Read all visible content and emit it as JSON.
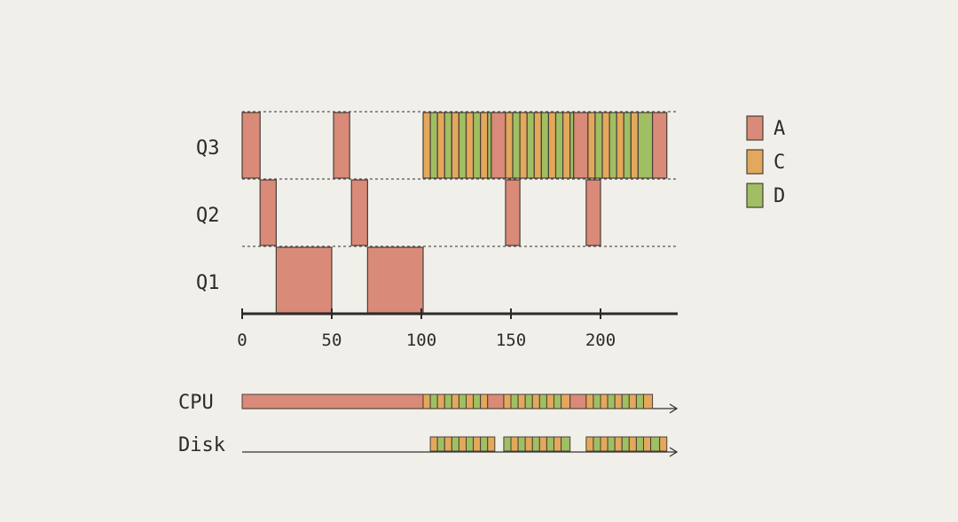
{
  "queues": {
    "labels": [
      "Q3",
      "Q2",
      "Q1"
    ],
    "slices": [
      {
        "queue": "Q3",
        "job": "A",
        "start": 0,
        "end": 10
      },
      {
        "queue": "Q2",
        "job": "A",
        "start": 10,
        "end": 19
      },
      {
        "queue": "Q1",
        "job": "A",
        "start": 19,
        "end": 50
      },
      {
        "queue": "Q3",
        "job": "A",
        "start": 51,
        "end": 60
      },
      {
        "queue": "Q2",
        "job": "A",
        "start": 61,
        "end": 70
      },
      {
        "queue": "Q1",
        "job": "A",
        "start": 70,
        "end": 101
      },
      {
        "queue": "Q3",
        "job": "C",
        "start": 101,
        "end": 105
      },
      {
        "queue": "Q3",
        "job": "D",
        "start": 105,
        "end": 109
      },
      {
        "queue": "Q3",
        "job": "C",
        "start": 109,
        "end": 113
      },
      {
        "queue": "Q3",
        "job": "D",
        "start": 113,
        "end": 117
      },
      {
        "queue": "Q3",
        "job": "C",
        "start": 117,
        "end": 121
      },
      {
        "queue": "Q3",
        "job": "D",
        "start": 121,
        "end": 125
      },
      {
        "queue": "Q3",
        "job": "C",
        "start": 125,
        "end": 129
      },
      {
        "queue": "Q3",
        "job": "D",
        "start": 129,
        "end": 133
      },
      {
        "queue": "Q3",
        "job": "C",
        "start": 133,
        "end": 137
      },
      {
        "queue": "Q3",
        "job": "D",
        "start": 137,
        "end": 139
      },
      {
        "queue": "Q3",
        "job": "A",
        "start": 139,
        "end": 147
      },
      {
        "queue": "Q2",
        "job": "A",
        "start": 147,
        "end": 155
      },
      {
        "queue": "Q3",
        "job": "C",
        "start": 147,
        "end": 151
      },
      {
        "queue": "Q3",
        "job": "D",
        "start": 151,
        "end": 155
      },
      {
        "queue": "Q3",
        "job": "C",
        "start": 155,
        "end": 159
      },
      {
        "queue": "Q3",
        "job": "D",
        "start": 159,
        "end": 163
      },
      {
        "queue": "Q3",
        "job": "C",
        "start": 163,
        "end": 167
      },
      {
        "queue": "Q3",
        "job": "D",
        "start": 167,
        "end": 171
      },
      {
        "queue": "Q3",
        "job": "C",
        "start": 171,
        "end": 175
      },
      {
        "queue": "Q3",
        "job": "D",
        "start": 175,
        "end": 179
      },
      {
        "queue": "Q3",
        "job": "C",
        "start": 179,
        "end": 183
      },
      {
        "queue": "Q3",
        "job": "D",
        "start": 183,
        "end": 185
      },
      {
        "queue": "Q3",
        "job": "A",
        "start": 185,
        "end": 193
      },
      {
        "queue": "Q2",
        "job": "A",
        "start": 192,
        "end": 200
      },
      {
        "queue": "Q3",
        "job": "C",
        "start": 193,
        "end": 197
      },
      {
        "queue": "Q3",
        "job": "D",
        "start": 197,
        "end": 201
      },
      {
        "queue": "Q3",
        "job": "C",
        "start": 201,
        "end": 205
      },
      {
        "queue": "Q3",
        "job": "D",
        "start": 205,
        "end": 209
      },
      {
        "queue": "Q3",
        "job": "C",
        "start": 209,
        "end": 213
      },
      {
        "queue": "Q3",
        "job": "D",
        "start": 213,
        "end": 217
      },
      {
        "queue": "Q3",
        "job": "C",
        "start": 217,
        "end": 221
      },
      {
        "queue": "Q3",
        "job": "D",
        "start": 221,
        "end": 229
      },
      {
        "queue": "Q3",
        "job": "A",
        "start": 229,
        "end": 237
      }
    ]
  },
  "axis": {
    "ticks": [
      0,
      50,
      100,
      150,
      200
    ],
    "tick_labels": [
      "0",
      "50",
      "100",
      "150",
      "200"
    ],
    "range": [
      0,
      245
    ]
  },
  "cpu": {
    "label": "CPU",
    "segments": [
      {
        "job": "A",
        "start": 0,
        "end": 101
      },
      {
        "job": "C",
        "start": 101,
        "end": 105
      },
      {
        "job": "D",
        "start": 105,
        "end": 109
      },
      {
        "job": "C",
        "start": 109,
        "end": 113
      },
      {
        "job": "D",
        "start": 113,
        "end": 117
      },
      {
        "job": "C",
        "start": 117,
        "end": 121
      },
      {
        "job": "D",
        "start": 121,
        "end": 125
      },
      {
        "job": "C",
        "start": 125,
        "end": 129
      },
      {
        "job": "D",
        "start": 129,
        "end": 133
      },
      {
        "job": "C",
        "start": 133,
        "end": 137
      },
      {
        "job": "A",
        "start": 137,
        "end": 146
      },
      {
        "job": "C",
        "start": 146,
        "end": 150
      },
      {
        "job": "D",
        "start": 150,
        "end": 154
      },
      {
        "job": "C",
        "start": 154,
        "end": 158
      },
      {
        "job": "D",
        "start": 158,
        "end": 162
      },
      {
        "job": "C",
        "start": 162,
        "end": 166
      },
      {
        "job": "D",
        "start": 166,
        "end": 170
      },
      {
        "job": "C",
        "start": 170,
        "end": 174
      },
      {
        "job": "D",
        "start": 174,
        "end": 178
      },
      {
        "job": "C",
        "start": 178,
        "end": 183
      },
      {
        "job": "A",
        "start": 183,
        "end": 192
      },
      {
        "job": "C",
        "start": 192,
        "end": 196
      },
      {
        "job": "D",
        "start": 196,
        "end": 200
      },
      {
        "job": "C",
        "start": 200,
        "end": 204
      },
      {
        "job": "D",
        "start": 204,
        "end": 208
      },
      {
        "job": "C",
        "start": 208,
        "end": 212
      },
      {
        "job": "D",
        "start": 212,
        "end": 216
      },
      {
        "job": "C",
        "start": 216,
        "end": 220
      },
      {
        "job": "D",
        "start": 220,
        "end": 224
      },
      {
        "job": "C",
        "start": 224,
        "end": 229
      }
    ]
  },
  "disk": {
    "label": "Disk",
    "segments": [
      {
        "job": "C",
        "start": 105,
        "end": 109
      },
      {
        "job": "D",
        "start": 109,
        "end": 113
      },
      {
        "job": "C",
        "start": 113,
        "end": 117
      },
      {
        "job": "D",
        "start": 117,
        "end": 121
      },
      {
        "job": "C",
        "start": 121,
        "end": 125
      },
      {
        "job": "D",
        "start": 125,
        "end": 129
      },
      {
        "job": "C",
        "start": 129,
        "end": 133
      },
      {
        "job": "D",
        "start": 133,
        "end": 137
      },
      {
        "job": "C",
        "start": 137,
        "end": 141
      },
      {
        "job": "D",
        "start": 146,
        "end": 150
      },
      {
        "job": "C",
        "start": 150,
        "end": 154
      },
      {
        "job": "D",
        "start": 154,
        "end": 158
      },
      {
        "job": "C",
        "start": 158,
        "end": 162
      },
      {
        "job": "D",
        "start": 162,
        "end": 166
      },
      {
        "job": "C",
        "start": 166,
        "end": 170
      },
      {
        "job": "D",
        "start": 170,
        "end": 174
      },
      {
        "job": "C",
        "start": 174,
        "end": 178
      },
      {
        "job": "D",
        "start": 178,
        "end": 183
      },
      {
        "job": "C",
        "start": 192,
        "end": 196
      },
      {
        "job": "D",
        "start": 196,
        "end": 200
      },
      {
        "job": "C",
        "start": 200,
        "end": 204
      },
      {
        "job": "D",
        "start": 204,
        "end": 208
      },
      {
        "job": "C",
        "start": 208,
        "end": 212
      },
      {
        "job": "D",
        "start": 212,
        "end": 216
      },
      {
        "job": "C",
        "start": 216,
        "end": 220
      },
      {
        "job": "D",
        "start": 220,
        "end": 224
      },
      {
        "job": "C",
        "start": 224,
        "end": 228
      },
      {
        "job": "D",
        "start": 228,
        "end": 233
      },
      {
        "job": "C",
        "start": 233,
        "end": 237
      }
    ]
  },
  "legend": [
    {
      "key": "A",
      "label": "A",
      "color": "#d98a78"
    },
    {
      "key": "C",
      "label": "C",
      "color": "#e3a85c"
    },
    {
      "key": "D",
      "label": "D",
      "color": "#9fbf62"
    }
  ],
  "colors": {
    "stroke": "#4a3f36",
    "axis": "#2b2b2b",
    "dashed": "#555555"
  }
}
